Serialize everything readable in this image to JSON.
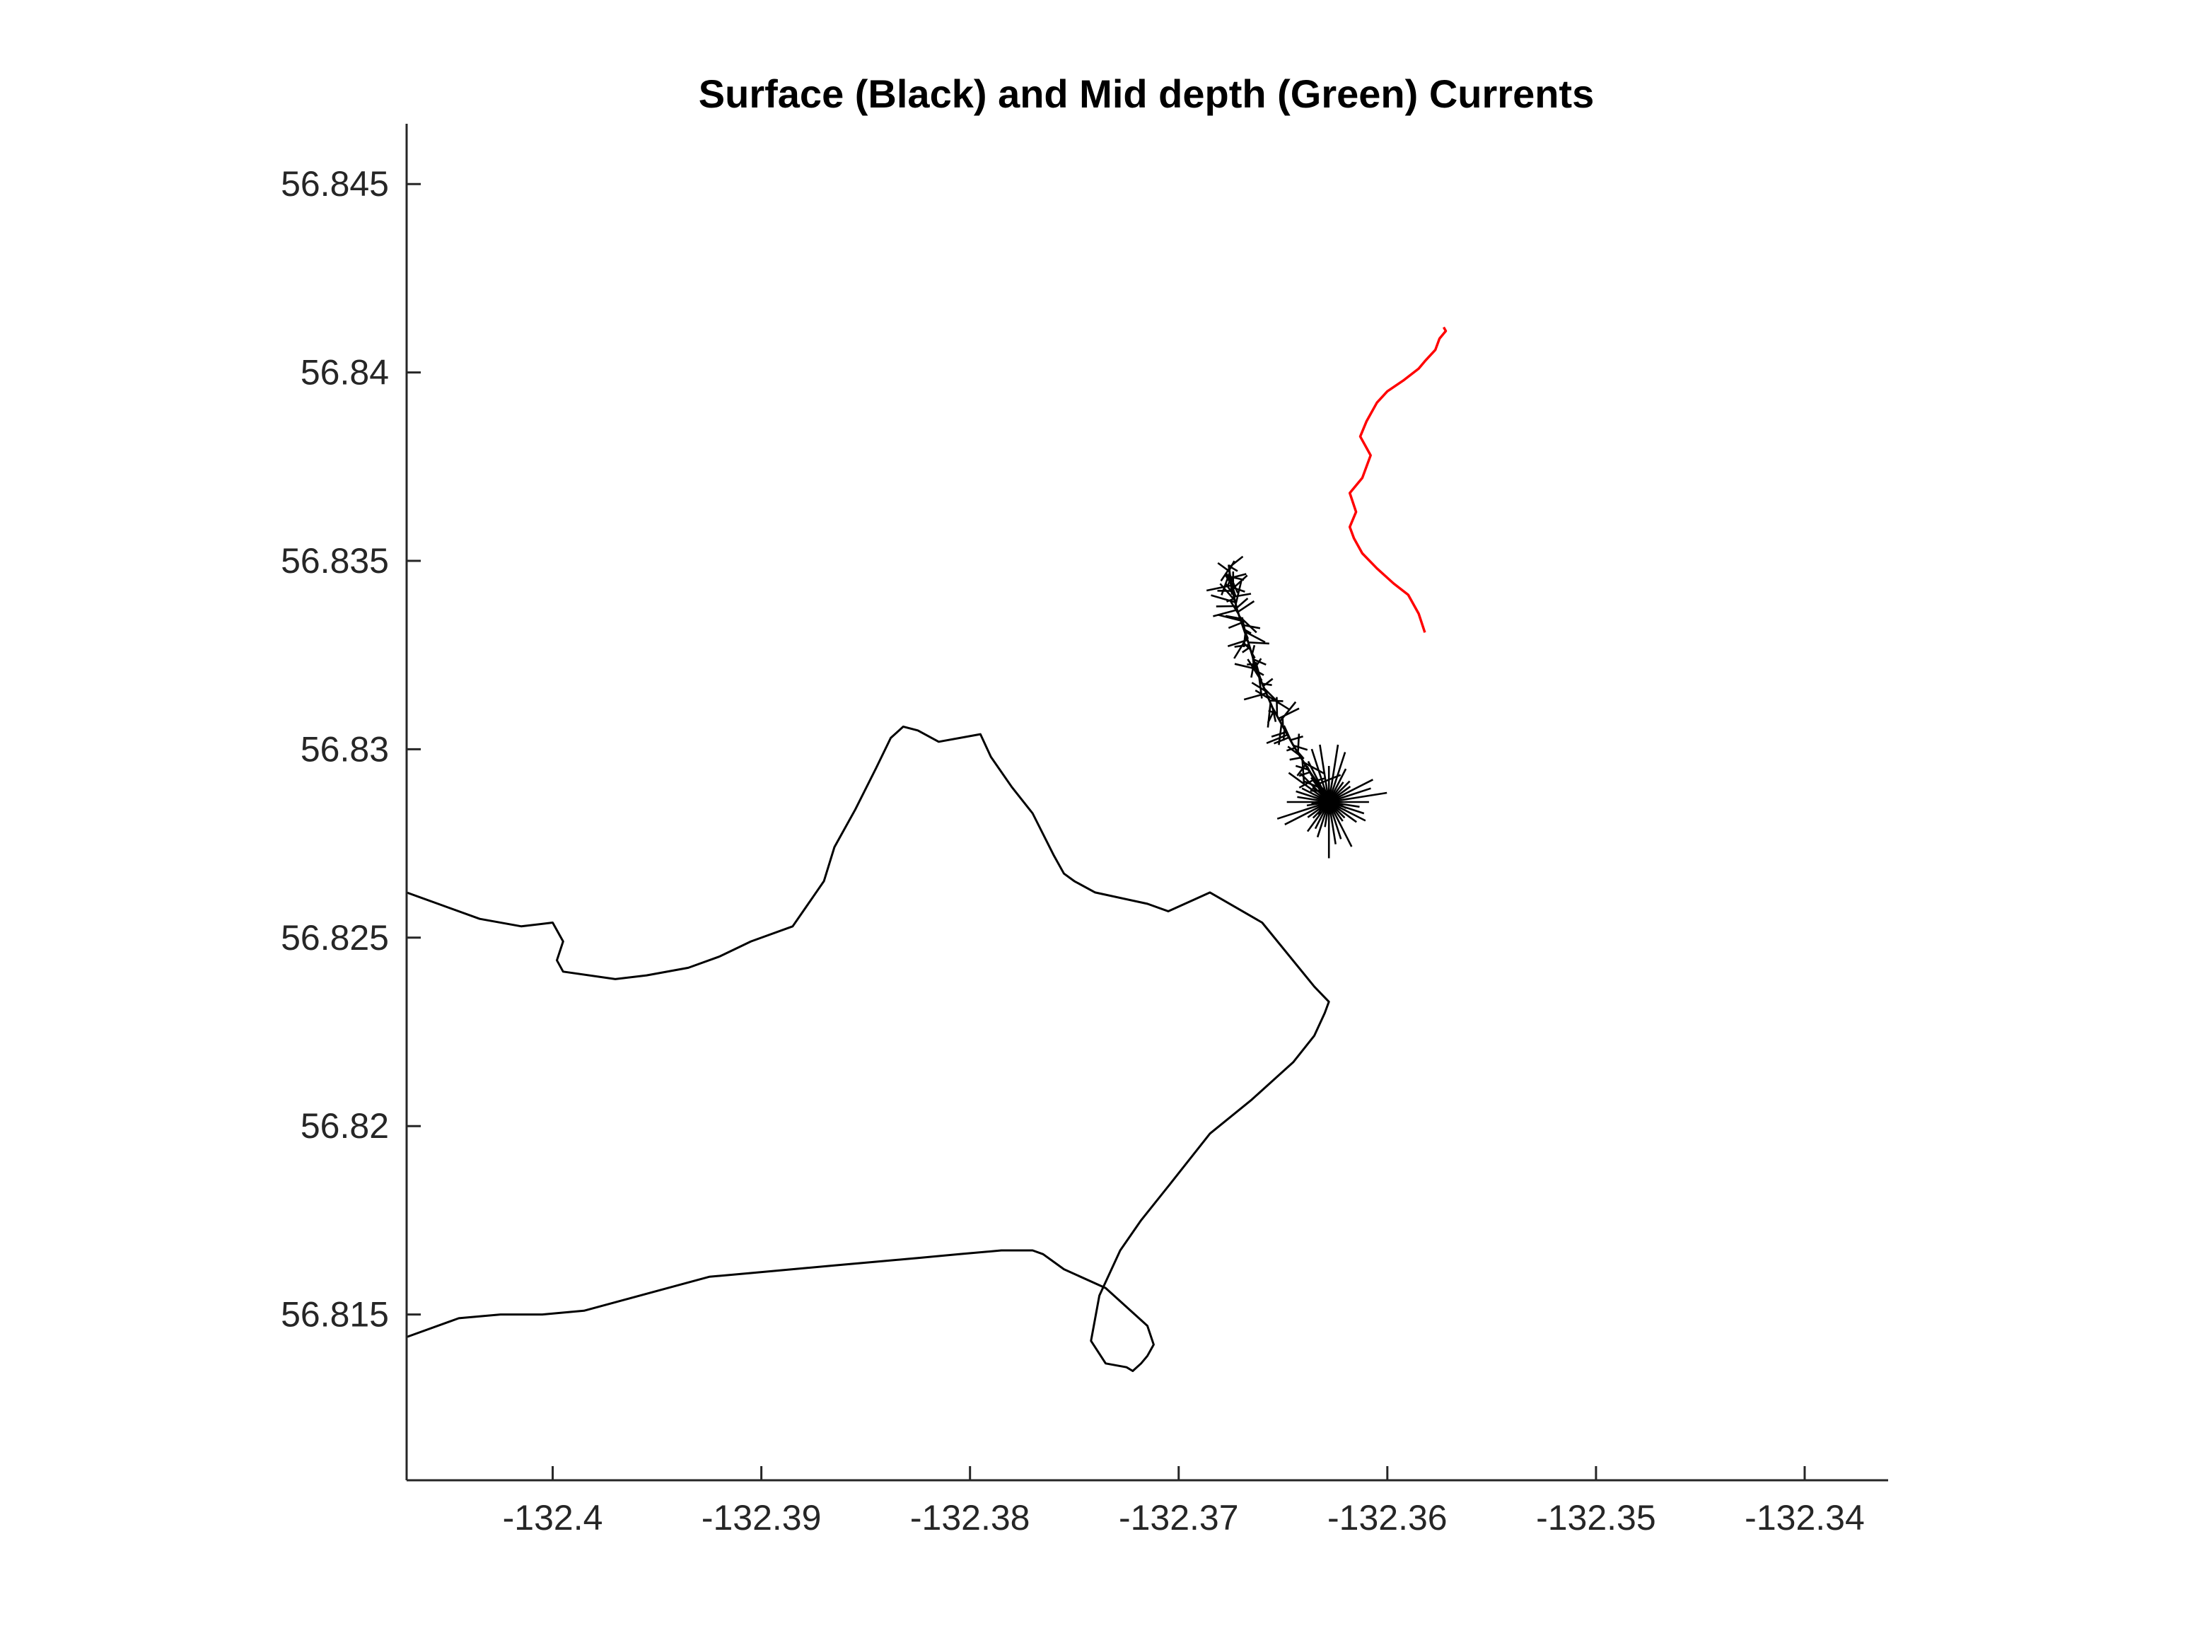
{
  "chart_data": {
    "type": "line",
    "title": "Surface (Black) and Mid depth (Green) Currents",
    "xlabel": "",
    "ylabel": "",
    "xlim": [
      -132.407,
      -132.336
    ],
    "ylim": [
      56.8106,
      56.8466
    ],
    "xticks": [
      -132.4,
      -132.39,
      -132.38,
      -132.37,
      -132.36,
      -132.35,
      -132.34
    ],
    "xtick_labels": [
      "-132.4",
      "-132.39",
      "-132.38",
      "-132.37",
      "-132.36",
      "-132.35",
      "-132.34"
    ],
    "yticks": [
      56.815,
      56.82,
      56.825,
      56.83,
      56.835,
      56.84,
      56.845
    ],
    "ytick_labels": [
      "56.815",
      "56.82",
      "56.825",
      "56.83",
      "56.835",
      "56.84",
      "56.845"
    ],
    "grid": false,
    "legend": "none",
    "colors": {
      "coast": "#000000",
      "mid_depth_track": "#ff0000",
      "surface_currents": "#000000",
      "axes": "#262626"
    },
    "series": [
      {
        "color": "#000000",
        "kind": "coastline",
        "x": [
          -132.407,
          -132.4055,
          -132.4035,
          -132.4015,
          -132.4,
          -132.3995,
          -132.3998,
          -132.3995,
          -132.397,
          -132.3955,
          -132.3935,
          -132.392,
          -132.3905,
          -132.3885,
          -132.3875,
          -132.387,
          -132.3865,
          -132.3855,
          -132.3845,
          -132.3838,
          -132.3832,
          -132.3825,
          -132.3815,
          -132.3795,
          -132.379,
          -132.378,
          -132.377,
          -132.376,
          -132.3755,
          -132.375,
          -132.374,
          -132.3715,
          -132.3705,
          -132.3685,
          -132.366,
          -132.3635,
          -132.3628,
          -132.363,
          -132.3635,
          -132.3645,
          -132.3665,
          -132.3685,
          -132.3705,
          -132.3718,
          -132.3728,
          -132.3738,
          -132.3742,
          -132.3735,
          -132.3725,
          -132.3722,
          -132.3718,
          -132.3715,
          -132.3712,
          -132.3715,
          -132.3735,
          -132.3755,
          -132.3765,
          -132.377,
          -132.3775,
          -132.3785,
          -132.3805,
          -132.3825,
          -132.3845,
          -132.3865,
          -132.3885,
          -132.3905,
          -132.3925,
          -132.3945,
          -132.3965,
          -132.3985,
          -132.4005,
          -132.4025,
          -132.4045,
          -132.407
        ],
        "y": [
          56.8262,
          56.8259,
          56.8255,
          56.8253,
          56.8254,
          56.8249,
          56.8244,
          56.8241,
          56.8239,
          56.824,
          56.8242,
          56.8245,
          56.8249,
          56.8253,
          56.8261,
          56.8265,
          56.8274,
          56.8284,
          56.8295,
          56.8303,
          56.8306,
          56.8305,
          56.8302,
          56.8304,
          56.8298,
          56.829,
          56.8283,
          56.8272,
          56.8267,
          56.8265,
          56.8262,
          56.8259,
          56.8257,
          56.8262,
          56.8254,
          56.8237,
          56.8233,
          56.823,
          56.8224,
          56.8217,
          56.8207,
          56.8198,
          56.8184,
          56.8175,
          56.8167,
          56.8155,
          56.8143,
          56.8137,
          56.8136,
          56.8135,
          56.8137,
          56.8139,
          56.8142,
          56.8147,
          56.8157,
          56.8162,
          56.8166,
          56.8167,
          56.8167,
          56.8167,
          56.8166,
          56.8165,
          56.8164,
          56.8163,
          56.8162,
          56.8161,
          56.816,
          56.8157,
          56.8154,
          56.8151,
          56.815,
          56.815,
          56.8149,
          56.8144
        ]
      },
      {
        "color": "#ff0000",
        "kind": "mid-depth track",
        "x": [
          -132.3582,
          -132.3585,
          -132.359,
          -132.3597,
          -132.3605,
          -132.3612,
          -132.3616,
          -132.3618,
          -132.3615,
          -132.3618,
          -132.3612,
          -132.3608,
          -132.3613,
          -132.361,
          -132.3605,
          -132.36,
          -132.3592,
          -132.3585,
          -132.3582,
          -132.3577,
          -132.3575,
          -132.3572,
          -132.3573
        ],
        "y": [
          56.8331,
          56.8336,
          56.8341,
          56.8344,
          56.8348,
          56.8352,
          56.8356,
          56.8359,
          56.8363,
          56.8368,
          56.8372,
          56.8378,
          56.8383,
          56.8387,
          56.8392,
          56.8395,
          56.8398,
          56.8401,
          56.8403,
          56.8406,
          56.8409,
          56.8411,
          56.8412
        ]
      },
      {
        "color": "#000000",
        "kind": "surface current track",
        "x": [
          -132.3628,
          -132.3635,
          -132.3645,
          -132.3655,
          -132.3662,
          -132.3667,
          -132.3672,
          -132.3675,
          -132.3676
        ],
        "y": [
          56.8286,
          56.8292,
          56.8301,
          56.8311,
          56.832,
          56.8329,
          56.8337,
          56.8344,
          56.8349
        ]
      }
    ]
  }
}
